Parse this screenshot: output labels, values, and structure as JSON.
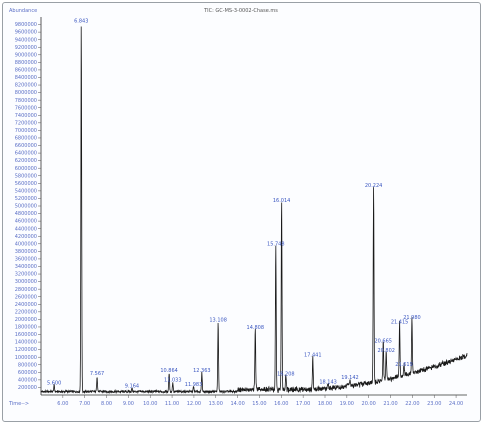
{
  "chart_data": {
    "type": "line",
    "title": "TIC: GC-MS-3-0002-Chase.ms",
    "ylabel": "Abundance",
    "xlabel": "Time-->",
    "xlim": [
      5.0,
      24.5
    ],
    "ylim": [
      0,
      10000000
    ],
    "x_ticks": [
      "6.00",
      "7.00",
      "8.00",
      "9.00",
      "10.00",
      "11.00",
      "12.00",
      "13.00",
      "14.00",
      "15.00",
      "16.00",
      "17.00",
      "18.00",
      "19.00",
      "20.00",
      "21.00",
      "22.00",
      "23.00",
      "24.00"
    ],
    "x_tick_values": [
      6,
      7,
      8,
      9,
      10,
      11,
      12,
      13,
      14,
      15,
      16,
      17,
      18,
      19,
      20,
      21,
      22,
      23,
      24
    ],
    "y_tick_labels": [
      "9800000",
      "9600000",
      "9400000",
      "9200000",
      "9000000",
      "8800000",
      "8600000",
      "8400000",
      "8200000",
      "8000000",
      "7800000",
      "7600000",
      "7400000",
      "7200000",
      "7000000",
      "6800000",
      "6600000",
      "6400000",
      "6200000",
      "6000000",
      "5800000",
      "5600000",
      "5400000",
      "5200000",
      "5000000",
      "4800000",
      "4600000",
      "4400000",
      "4200000",
      "4000000",
      "3800000",
      "3600000",
      "3400000",
      "3200000",
      "3000000",
      "2800000",
      "2600000",
      "2400000",
      "2200000",
      "2000000",
      "1800000",
      "1600000",
      "1400000",
      "1200000",
      "1000000",
      "800000",
      "600000",
      "400000",
      "200000"
    ],
    "y_tick_values": [
      9800000,
      9600000,
      9400000,
      9200000,
      9000000,
      8800000,
      8600000,
      8400000,
      8200000,
      8000000,
      7800000,
      7600000,
      7400000,
      7200000,
      7000000,
      6800000,
      6600000,
      6400000,
      6200000,
      6000000,
      5800000,
      5600000,
      5400000,
      5200000,
      5000000,
      4800000,
      4600000,
      4400000,
      4200000,
      4000000,
      3800000,
      3600000,
      3400000,
      3200000,
      3000000,
      2800000,
      2600000,
      2400000,
      2200000,
      2000000,
      1800000,
      1600000,
      1400000,
      1200000,
      1000000,
      800000,
      600000,
      400000,
      200000
    ],
    "peaks": [
      {
        "label": "5.600",
        "x": 5.6,
        "y": 230000
      },
      {
        "label": "6.843",
        "x": 6.843,
        "y": 9800000
      },
      {
        "label": "7.567",
        "x": 7.567,
        "y": 470000
      },
      {
        "label": "9.164",
        "x": 9.164,
        "y": 140000
      },
      {
        "label": "10.864",
        "x": 10.864,
        "y": 560000
      },
      {
        "label": "11.033",
        "x": 11.033,
        "y": 310000
      },
      {
        "label": "11.983",
        "x": 11.983,
        "y": 190000
      },
      {
        "label": "12.363",
        "x": 12.363,
        "y": 560000
      },
      {
        "label": "13.108",
        "x": 13.108,
        "y": 1890000
      },
      {
        "label": "14.808",
        "x": 14.808,
        "y": 1690000
      },
      {
        "label": "15.748",
        "x": 15.748,
        "y": 3900000
      },
      {
        "label": "16.014",
        "x": 16.014,
        "y": 5050000
      },
      {
        "label": "16.208",
        "x": 16.208,
        "y": 460000
      },
      {
        "label": "17.441",
        "x": 17.441,
        "y": 960000
      },
      {
        "label": "18.143",
        "x": 18.143,
        "y": 250000
      },
      {
        "label": "19.142",
        "x": 19.142,
        "y": 370000
      },
      {
        "label": "20.224",
        "x": 20.224,
        "y": 5450000
      },
      {
        "label": "20.665",
        "x": 20.665,
        "y": 1330000
      },
      {
        "label": "20.802",
        "x": 20.802,
        "y": 1090000
      },
      {
        "label": "21.415",
        "x": 21.415,
        "y": 1840000
      },
      {
        "label": "21.619",
        "x": 21.619,
        "y": 720000
      },
      {
        "label": "21.980",
        "x": 21.98,
        "y": 1960000
      }
    ]
  }
}
